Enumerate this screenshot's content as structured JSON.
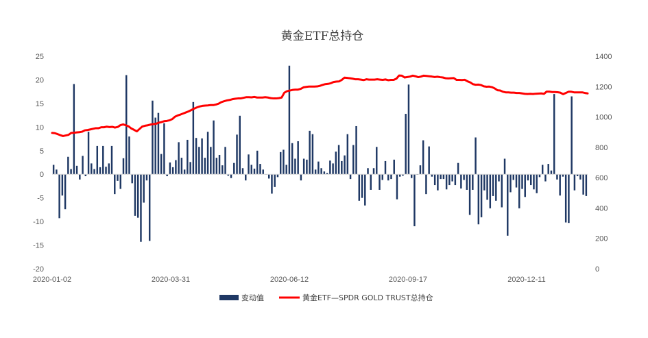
{
  "chart_data": {
    "type": "bar+line",
    "title": "黄金ETF总持仓",
    "x_tick_labels": [
      "2020-01-02",
      "2020-03-31",
      "2020-06-12",
      "2020-09-17",
      "2020-12-11"
    ],
    "y_left": {
      "min": -20,
      "max": 25,
      "step": 5
    },
    "y_right": {
      "min": 0,
      "max": 1400,
      "step": 200
    },
    "grid": false,
    "legend_position": "bottom",
    "colors": {
      "bar": "#1f3864",
      "line": "#ff0000"
    },
    "series": [
      {
        "name": "变动值",
        "type": "bar",
        "axis": "left",
        "values": [
          2.0,
          1.0,
          -9.3,
          -4.5,
          -7.4,
          3.7,
          1.1,
          19.1,
          1.8,
          -1.1,
          3.9,
          -0.4,
          9.0,
          2.3,
          1.1,
          6.0,
          1.5,
          6.0,
          1.6,
          2.3,
          6.0,
          -4.2,
          -1.4,
          -3.1,
          3.4,
          21.0,
          8.0,
          -1.9,
          -8.8,
          -9.2,
          -14.3,
          -6.0,
          -1.3,
          -14.1,
          15.6,
          12.0,
          13.0,
          4.3,
          10.8,
          -0.4,
          2.5,
          1.5,
          3.0,
          6.8,
          3.5,
          1.0,
          7.3,
          2.6,
          15.3,
          7.7,
          5.8,
          7.6,
          3.5,
          9.0,
          5.8,
          11.4,
          3.5,
          4.1,
          1.9,
          5.8,
          -0.3,
          -0.8,
          2.4,
          8.4,
          12.4,
          1.3,
          -1.3,
          4.2,
          2.0,
          1.2,
          5.0,
          2.2,
          1.0,
          0.0,
          -0.9,
          -4.1,
          -2.7,
          -0.6,
          4.7,
          5.2,
          2.0,
          23.0,
          6.6,
          3.3,
          7.0,
          -1.3,
          3.3,
          3.1,
          9.2,
          8.5,
          1.0,
          2.7,
          1.3,
          0.6,
          0.3,
          2.9,
          2.3,
          4.8,
          6.2,
          2.8,
          4.0,
          8.5,
          -1.0,
          6.2,
          10.2,
          -5.6,
          -5.0,
          -6.6,
          1.3,
          -3.3,
          1.3,
          5.8,
          -3.3,
          -1.2,
          2.8,
          -1.3,
          -1.0,
          3.1,
          -5.3,
          -0.5,
          -0.3,
          12.8,
          19.0,
          -0.8,
          -11.0,
          -0.1,
          1.9,
          7.2,
          -4.2,
          5.9,
          -0.5,
          -2.3,
          -3.4,
          -1.0,
          -1.0,
          -3.2,
          -2.3,
          -1.5,
          -2.3,
          2.4,
          -3.0,
          -1.2,
          -3.3,
          -8.6,
          -3.3,
          7.8,
          -10.6,
          -9.1,
          -3.4,
          -5.4,
          -7.2,
          -4.6,
          -5.6,
          -1.5,
          -7.0,
          3.3,
          -13.0,
          -3.8,
          -1.2,
          -2.8,
          -7.2,
          -3.1,
          -4.8,
          -1.3,
          -2.3,
          -3.2,
          -4.0,
          -0.6,
          2.0,
          -1.5,
          2.2,
          0.8,
          17.0,
          -1.1,
          -4.5,
          -0.5,
          -10.2,
          -10.3,
          16.5,
          -3.4,
          -0.4,
          -1.1,
          -4.3,
          -4.6
        ]
      },
      {
        "name": "黄金ETF—SPDR GOLD TRUST总持仓",
        "type": "line",
        "axis": "right",
        "points": [
          [
            0,
            895
          ],
          [
            2,
            893
          ],
          [
            4,
            887
          ],
          [
            6,
            880
          ],
          [
            8,
            874
          ],
          [
            10,
            878
          ],
          [
            12,
            882
          ],
          [
            14,
            895
          ],
          [
            16,
            896
          ],
          [
            18,
            898
          ],
          [
            20,
            900
          ],
          [
            22,
            903
          ],
          [
            24,
            912
          ],
          [
            26,
            914
          ],
          [
            28,
            918
          ],
          [
            30,
            922
          ],
          [
            32,
            926
          ],
          [
            34,
            926
          ],
          [
            36,
            932
          ],
          [
            38,
            932
          ],
          [
            40,
            936
          ],
          [
            42,
            933
          ],
          [
            44,
            935
          ],
          [
            46,
            930
          ],
          [
            48,
            934
          ],
          [
            50,
            946
          ],
          [
            52,
            951
          ],
          [
            54,
            945
          ],
          [
            56,
            938
          ],
          [
            58,
            924
          ],
          [
            60,
            915
          ],
          [
            62,
            905
          ],
          [
            64,
            921
          ],
          [
            66,
            937
          ],
          [
            68,
            942
          ],
          [
            70,
            945
          ],
          [
            72,
            950
          ],
          [
            74,
            953
          ],
          [
            76,
            955
          ],
          [
            78,
            962
          ],
          [
            80,
            966
          ],
          [
            82,
            972
          ],
          [
            84,
            974
          ],
          [
            86,
            978
          ],
          [
            88,
            986
          ],
          [
            90,
            1002
          ],
          [
            92,
            1010
          ],
          [
            94,
            1016
          ],
          [
            96,
            1023
          ],
          [
            98,
            1030
          ],
          [
            100,
            1037
          ],
          [
            102,
            1046
          ],
          [
            104,
            1055
          ],
          [
            106,
            1063
          ],
          [
            108,
            1069
          ],
          [
            110,
            1073
          ],
          [
            112,
            1075
          ],
          [
            114,
            1076
          ],
          [
            116,
            1078
          ],
          [
            118,
            1078
          ],
          [
            120,
            1082
          ],
          [
            122,
            1088
          ],
          [
            124,
            1098
          ],
          [
            126,
            1104
          ],
          [
            128,
            1109
          ],
          [
            130,
            1112
          ],
          [
            132,
            1117
          ],
          [
            134,
            1120
          ],
          [
            136,
            1122
          ],
          [
            138,
            1122
          ],
          [
            140,
            1126
          ],
          [
            142,
            1130
          ],
          [
            144,
            1130
          ],
          [
            146,
            1129
          ],
          [
            148,
            1132
          ],
          [
            150,
            1128
          ],
          [
            152,
            1128
          ],
          [
            154,
            1128
          ],
          [
            156,
            1130
          ],
          [
            158,
            1128
          ],
          [
            160,
            1124
          ],
          [
            162,
            1122
          ],
          [
            164,
            1122
          ],
          [
            166,
            1124
          ],
          [
            168,
            1128
          ],
          [
            170,
            1160
          ],
          [
            172,
            1170
          ],
          [
            174,
            1174
          ],
          [
            176,
            1178
          ],
          [
            178,
            1180
          ],
          [
            180,
            1180
          ],
          [
            182,
            1185
          ],
          [
            184,
            1195
          ],
          [
            186,
            1198
          ],
          [
            188,
            1200
          ],
          [
            190,
            1200
          ],
          [
            192,
            1200
          ],
          [
            194,
            1201
          ],
          [
            196,
            1205
          ],
          [
            198,
            1211
          ],
          [
            200,
            1216
          ],
          [
            202,
            1218
          ],
          [
            204,
            1222
          ],
          [
            206,
            1230
          ],
          [
            208,
            1233
          ],
          [
            210,
            1234
          ],
          [
            212,
            1244
          ],
          [
            214,
            1259
          ],
          [
            216,
            1257
          ],
          [
            218,
            1255
          ],
          [
            220,
            1252
          ],
          [
            222,
            1248
          ],
          [
            224,
            1248
          ],
          [
            226,
            1246
          ],
          [
            228,
            1243
          ],
          [
            230,
            1248
          ],
          [
            232,
            1246
          ],
          [
            234,
            1246
          ],
          [
            236,
            1246
          ],
          [
            238,
            1248
          ],
          [
            240,
            1246
          ],
          [
            242,
            1244
          ],
          [
            244,
            1247
          ],
          [
            246,
            1242
          ],
          [
            248,
            1244
          ],
          [
            250,
            1244
          ],
          [
            252,
            1252
          ],
          [
            254,
            1273
          ],
          [
            256,
            1272
          ],
          [
            258,
            1260
          ],
          [
            260,
            1263
          ],
          [
            262,
            1266
          ],
          [
            264,
            1272
          ],
          [
            266,
            1268
          ],
          [
            268,
            1262
          ],
          [
            270,
            1266
          ],
          [
            272,
            1272
          ],
          [
            274,
            1270
          ],
          [
            276,
            1268
          ],
          [
            278,
            1266
          ],
          [
            280,
            1263
          ],
          [
            282,
            1265
          ],
          [
            284,
            1262
          ],
          [
            286,
            1260
          ],
          [
            288,
            1255
          ],
          [
            290,
            1254
          ],
          [
            292,
            1255
          ],
          [
            294,
            1256
          ],
          [
            296,
            1244
          ],
          [
            298,
            1244
          ],
          [
            300,
            1243
          ],
          [
            302,
            1245
          ],
          [
            304,
            1235
          ],
          [
            306,
            1228
          ],
          [
            308,
            1216
          ],
          [
            310,
            1212
          ],
          [
            312,
            1213
          ],
          [
            314,
            1210
          ],
          [
            316,
            1202
          ],
          [
            318,
            1199
          ],
          [
            320,
            1200
          ],
          [
            322,
            1196
          ],
          [
            324,
            1188
          ],
          [
            326,
            1176
          ],
          [
            328,
            1174
          ],
          [
            330,
            1166
          ],
          [
            332,
            1162
          ],
          [
            334,
            1162
          ],
          [
            336,
            1160
          ],
          [
            338,
            1160
          ],
          [
            340,
            1158
          ],
          [
            342,
            1158
          ],
          [
            344,
            1155
          ],
          [
            346,
            1152
          ],
          [
            348,
            1151
          ],
          [
            350,
            1152
          ],
          [
            352,
            1151
          ],
          [
            354,
            1153
          ],
          [
            356,
            1154
          ],
          [
            358,
            1155
          ],
          [
            360,
            1152
          ],
          [
            362,
            1167
          ],
          [
            364,
            1167
          ],
          [
            366,
            1164
          ],
          [
            368,
            1164
          ],
          [
            370,
            1163
          ],
          [
            372,
            1160
          ],
          [
            374,
            1150
          ],
          [
            376,
            1158
          ],
          [
            378,
            1166
          ],
          [
            380,
            1166
          ],
          [
            382,
            1162
          ],
          [
            384,
            1162
          ],
          [
            386,
            1162
          ],
          [
            388,
            1162
          ],
          [
            390,
            1158
          ],
          [
            392,
            1155
          ]
        ]
      }
    ]
  }
}
